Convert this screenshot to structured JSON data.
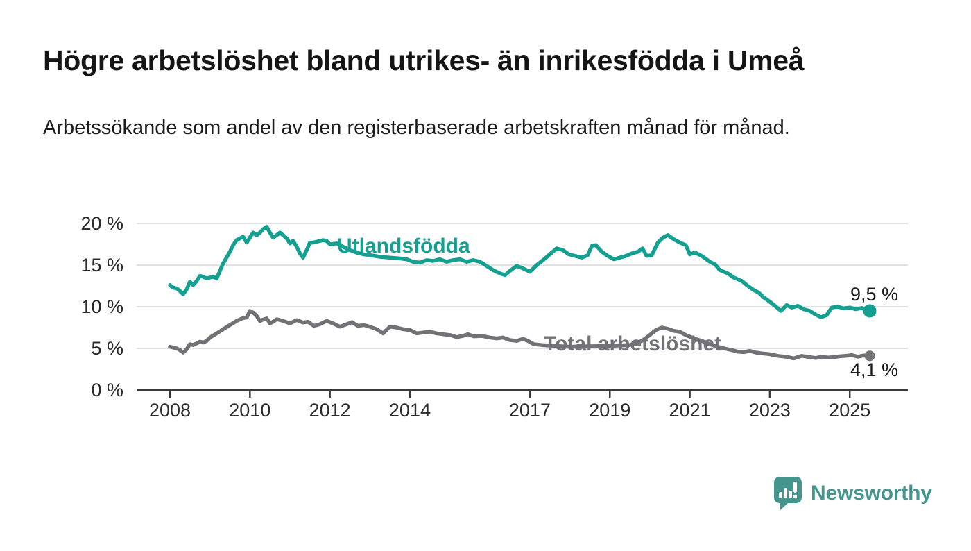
{
  "header": {
    "title": "Högre arbetslöshet bland utrikes- än inrikesfödda i Umeå",
    "subtitle": "Arbetssökande som andel av den registerbaserade arbetskraften månad för månad."
  },
  "chart_data": {
    "type": "line",
    "title": "Högre arbetslöshet bland utrikes- än inrikesfödda i Umeå",
    "xlabel": "",
    "ylabel": "",
    "grid": "horizontal",
    "legend_position": "inline-labels",
    "ylim": [
      0,
      20
    ],
    "xlim": [
      2007.2,
      2026.4
    ],
    "y_ticks": [
      0,
      5,
      10,
      15,
      20
    ],
    "y_tick_labels": [
      "0 %",
      "5 %",
      "10 %",
      "15 %",
      "20 %"
    ],
    "x_ticks": [
      2008,
      2010,
      2012,
      2014,
      2017,
      2019,
      2021,
      2023,
      2025
    ],
    "x_tick_labels": [
      "2008",
      "2010",
      "2012",
      "2014",
      "2017",
      "2019",
      "2021",
      "2023",
      "2025"
    ],
    "axis_color": "#3a3a3a",
    "gridline_color": "#d8d8d8",
    "series": [
      {
        "name": "Utlandsfödda",
        "color": "#14a090",
        "end_label": "9,5 %",
        "end_value": 9.5,
        "points": [
          [
            2008.0,
            12.6
          ],
          [
            2008.08,
            12.3
          ],
          [
            2008.17,
            12.2
          ],
          [
            2008.25,
            11.9
          ],
          [
            2008.33,
            11.5
          ],
          [
            2008.42,
            12.1
          ],
          [
            2008.5,
            13.0
          ],
          [
            2008.58,
            12.6
          ],
          [
            2008.67,
            13.1
          ],
          [
            2008.75,
            13.7
          ],
          [
            2008.83,
            13.6
          ],
          [
            2008.92,
            13.4
          ],
          [
            2009.0,
            13.5
          ],
          [
            2009.08,
            13.6
          ],
          [
            2009.17,
            13.4
          ],
          [
            2009.33,
            15.2
          ],
          [
            2009.5,
            16.6
          ],
          [
            2009.58,
            17.4
          ],
          [
            2009.67,
            18.0
          ],
          [
            2009.75,
            18.2
          ],
          [
            2009.83,
            18.4
          ],
          [
            2009.92,
            17.7
          ],
          [
            2010.0,
            18.3
          ],
          [
            2010.08,
            18.9
          ],
          [
            2010.17,
            18.6
          ],
          [
            2010.25,
            18.9
          ],
          [
            2010.33,
            19.3
          ],
          [
            2010.42,
            19.6
          ],
          [
            2010.5,
            18.9
          ],
          [
            2010.58,
            18.3
          ],
          [
            2010.67,
            18.6
          ],
          [
            2010.75,
            18.9
          ],
          [
            2010.83,
            18.6
          ],
          [
            2010.92,
            18.2
          ],
          [
            2011.0,
            17.6
          ],
          [
            2011.08,
            17.9
          ],
          [
            2011.17,
            17.2
          ],
          [
            2011.25,
            16.4
          ],
          [
            2011.33,
            15.9
          ],
          [
            2011.42,
            16.8
          ],
          [
            2011.5,
            17.7
          ],
          [
            2011.58,
            17.7
          ],
          [
            2011.67,
            17.8
          ],
          [
            2011.75,
            17.9
          ],
          [
            2011.83,
            18.0
          ],
          [
            2011.92,
            17.9
          ],
          [
            2012.0,
            17.5
          ],
          [
            2012.17,
            17.6
          ],
          [
            2012.33,
            17.2
          ],
          [
            2012.5,
            16.8
          ],
          [
            2012.67,
            16.5
          ],
          [
            2012.83,
            16.3
          ],
          [
            2013.0,
            16.2
          ],
          [
            2013.25,
            16.0
          ],
          [
            2013.5,
            15.9
          ],
          [
            2013.75,
            15.8
          ],
          [
            2013.92,
            15.7
          ],
          [
            2014.08,
            15.4
          ],
          [
            2014.25,
            15.3
          ],
          [
            2014.42,
            15.6
          ],
          [
            2014.58,
            15.5
          ],
          [
            2014.75,
            15.7
          ],
          [
            2014.92,
            15.4
          ],
          [
            2015.08,
            15.6
          ],
          [
            2015.25,
            15.7
          ],
          [
            2015.42,
            15.4
          ],
          [
            2015.58,
            15.6
          ],
          [
            2015.75,
            15.4
          ],
          [
            2015.92,
            14.9
          ],
          [
            2016.08,
            14.4
          ],
          [
            2016.25,
            14.0
          ],
          [
            2016.38,
            13.8
          ],
          [
            2016.5,
            14.3
          ],
          [
            2016.67,
            14.9
          ],
          [
            2016.83,
            14.6
          ],
          [
            2017.0,
            14.2
          ],
          [
            2017.17,
            15.0
          ],
          [
            2017.33,
            15.6
          ],
          [
            2017.5,
            16.3
          ],
          [
            2017.67,
            17.0
          ],
          [
            2017.83,
            16.8
          ],
          [
            2017.97,
            16.3
          ],
          [
            2018.13,
            16.1
          ],
          [
            2018.3,
            15.9
          ],
          [
            2018.45,
            16.2
          ],
          [
            2018.55,
            17.3
          ],
          [
            2018.65,
            17.4
          ],
          [
            2018.8,
            16.6
          ],
          [
            2018.95,
            16.1
          ],
          [
            2019.1,
            15.7
          ],
          [
            2019.25,
            15.9
          ],
          [
            2019.4,
            16.1
          ],
          [
            2019.55,
            16.4
          ],
          [
            2019.7,
            16.6
          ],
          [
            2019.82,
            17.0
          ],
          [
            2019.92,
            16.1
          ],
          [
            2020.05,
            16.2
          ],
          [
            2020.2,
            17.7
          ],
          [
            2020.33,
            18.3
          ],
          [
            2020.45,
            18.6
          ],
          [
            2020.6,
            18.1
          ],
          [
            2020.75,
            17.7
          ],
          [
            2020.9,
            17.4
          ],
          [
            2021.0,
            16.3
          ],
          [
            2021.13,
            16.5
          ],
          [
            2021.3,
            16.1
          ],
          [
            2021.5,
            15.4
          ],
          [
            2021.63,
            15.1
          ],
          [
            2021.75,
            14.4
          ],
          [
            2021.95,
            14.0
          ],
          [
            2022.1,
            13.5
          ],
          [
            2022.3,
            13.1
          ],
          [
            2022.45,
            12.5
          ],
          [
            2022.6,
            12.0
          ],
          [
            2022.72,
            11.7
          ],
          [
            2022.85,
            11.1
          ],
          [
            2023.0,
            10.6
          ],
          [
            2023.13,
            10.1
          ],
          [
            2023.28,
            9.5
          ],
          [
            2023.42,
            10.2
          ],
          [
            2023.55,
            9.9
          ],
          [
            2023.7,
            10.1
          ],
          [
            2023.85,
            9.7
          ],
          [
            2024.0,
            9.5
          ],
          [
            2024.13,
            9.1
          ],
          [
            2024.28,
            8.75
          ],
          [
            2024.42,
            9.0
          ],
          [
            2024.55,
            9.9
          ],
          [
            2024.7,
            10.0
          ],
          [
            2024.85,
            9.8
          ],
          [
            2025.0,
            9.9
          ],
          [
            2025.15,
            9.7
          ],
          [
            2025.3,
            9.85
          ],
          [
            2025.42,
            9.6
          ],
          [
            2025.5,
            9.5
          ]
        ]
      },
      {
        "name": "Total arbetslöshet",
        "color": "#717176",
        "end_label": "4,1 %",
        "end_value": 4.1,
        "points": [
          [
            2008.0,
            5.2
          ],
          [
            2008.08,
            5.1
          ],
          [
            2008.17,
            5.0
          ],
          [
            2008.25,
            4.8
          ],
          [
            2008.33,
            4.5
          ],
          [
            2008.42,
            4.9
          ],
          [
            2008.5,
            5.5
          ],
          [
            2008.58,
            5.4
          ],
          [
            2008.67,
            5.6
          ],
          [
            2008.75,
            5.8
          ],
          [
            2008.83,
            5.7
          ],
          [
            2008.92,
            5.9
          ],
          [
            2009.0,
            6.3
          ],
          [
            2009.17,
            6.8
          ],
          [
            2009.33,
            7.3
          ],
          [
            2009.5,
            7.8
          ],
          [
            2009.67,
            8.3
          ],
          [
            2009.83,
            8.65
          ],
          [
            2009.92,
            8.7
          ],
          [
            2010.0,
            9.5
          ],
          [
            2010.08,
            9.3
          ],
          [
            2010.17,
            8.9
          ],
          [
            2010.25,
            8.3
          ],
          [
            2010.33,
            8.45
          ],
          [
            2010.42,
            8.6
          ],
          [
            2010.5,
            8.0
          ],
          [
            2010.58,
            8.2
          ],
          [
            2010.67,
            8.5
          ],
          [
            2010.83,
            8.3
          ],
          [
            2011.0,
            8.0
          ],
          [
            2011.17,
            8.4
          ],
          [
            2011.33,
            8.1
          ],
          [
            2011.45,
            8.2
          ],
          [
            2011.6,
            7.7
          ],
          [
            2011.75,
            7.9
          ],
          [
            2011.92,
            8.3
          ],
          [
            2012.08,
            8.0
          ],
          [
            2012.25,
            7.6
          ],
          [
            2012.42,
            7.9
          ],
          [
            2012.55,
            8.15
          ],
          [
            2012.7,
            7.7
          ],
          [
            2012.85,
            7.8
          ],
          [
            2013.0,
            7.6
          ],
          [
            2013.17,
            7.3
          ],
          [
            2013.33,
            6.8
          ],
          [
            2013.5,
            7.6
          ],
          [
            2013.67,
            7.5
          ],
          [
            2013.83,
            7.3
          ],
          [
            2014.0,
            7.2
          ],
          [
            2014.17,
            6.8
          ],
          [
            2014.33,
            6.9
          ],
          [
            2014.5,
            7.0
          ],
          [
            2014.67,
            6.8
          ],
          [
            2014.83,
            6.7
          ],
          [
            2015.0,
            6.6
          ],
          [
            2015.17,
            6.35
          ],
          [
            2015.33,
            6.5
          ],
          [
            2015.45,
            6.7
          ],
          [
            2015.6,
            6.45
          ],
          [
            2015.8,
            6.5
          ],
          [
            2016.0,
            6.3
          ],
          [
            2016.17,
            6.2
          ],
          [
            2016.33,
            6.3
          ],
          [
            2016.5,
            6.0
          ],
          [
            2016.67,
            5.9
          ],
          [
            2016.83,
            6.15
          ],
          [
            2016.95,
            5.9
          ],
          [
            2017.1,
            5.5
          ],
          [
            2017.3,
            5.4
          ],
          [
            2017.6,
            5.3
          ],
          [
            2018.0,
            5.2
          ],
          [
            2018.5,
            5.25
          ],
          [
            2019.0,
            5.3
          ],
          [
            2019.5,
            5.4
          ],
          [
            2019.8,
            5.9
          ],
          [
            2020.0,
            6.6
          ],
          [
            2020.15,
            7.2
          ],
          [
            2020.3,
            7.5
          ],
          [
            2020.45,
            7.35
          ],
          [
            2020.6,
            7.1
          ],
          [
            2020.75,
            7.0
          ],
          [
            2020.9,
            6.6
          ],
          [
            2021.1,
            6.2
          ],
          [
            2021.3,
            5.9
          ],
          [
            2021.5,
            5.5
          ],
          [
            2021.7,
            5.2
          ],
          [
            2021.9,
            4.95
          ],
          [
            2022.05,
            4.8
          ],
          [
            2022.2,
            4.6
          ],
          [
            2022.35,
            4.55
          ],
          [
            2022.5,
            4.7
          ],
          [
            2022.65,
            4.5
          ],
          [
            2022.8,
            4.4
          ],
          [
            2023.0,
            4.3
          ],
          [
            2023.2,
            4.1
          ],
          [
            2023.4,
            4.0
          ],
          [
            2023.6,
            3.8
          ],
          [
            2023.8,
            4.1
          ],
          [
            2024.0,
            3.95
          ],
          [
            2024.15,
            3.85
          ],
          [
            2024.3,
            4.0
          ],
          [
            2024.45,
            3.9
          ],
          [
            2024.6,
            3.95
          ],
          [
            2024.75,
            4.05
          ],
          [
            2024.9,
            4.1
          ],
          [
            2025.05,
            4.2
          ],
          [
            2025.2,
            4.0
          ],
          [
            2025.35,
            4.15
          ],
          [
            2025.5,
            4.1
          ]
        ]
      }
    ]
  },
  "footer": {
    "brand": "Newsworthy",
    "brand_color": "#44958d"
  }
}
